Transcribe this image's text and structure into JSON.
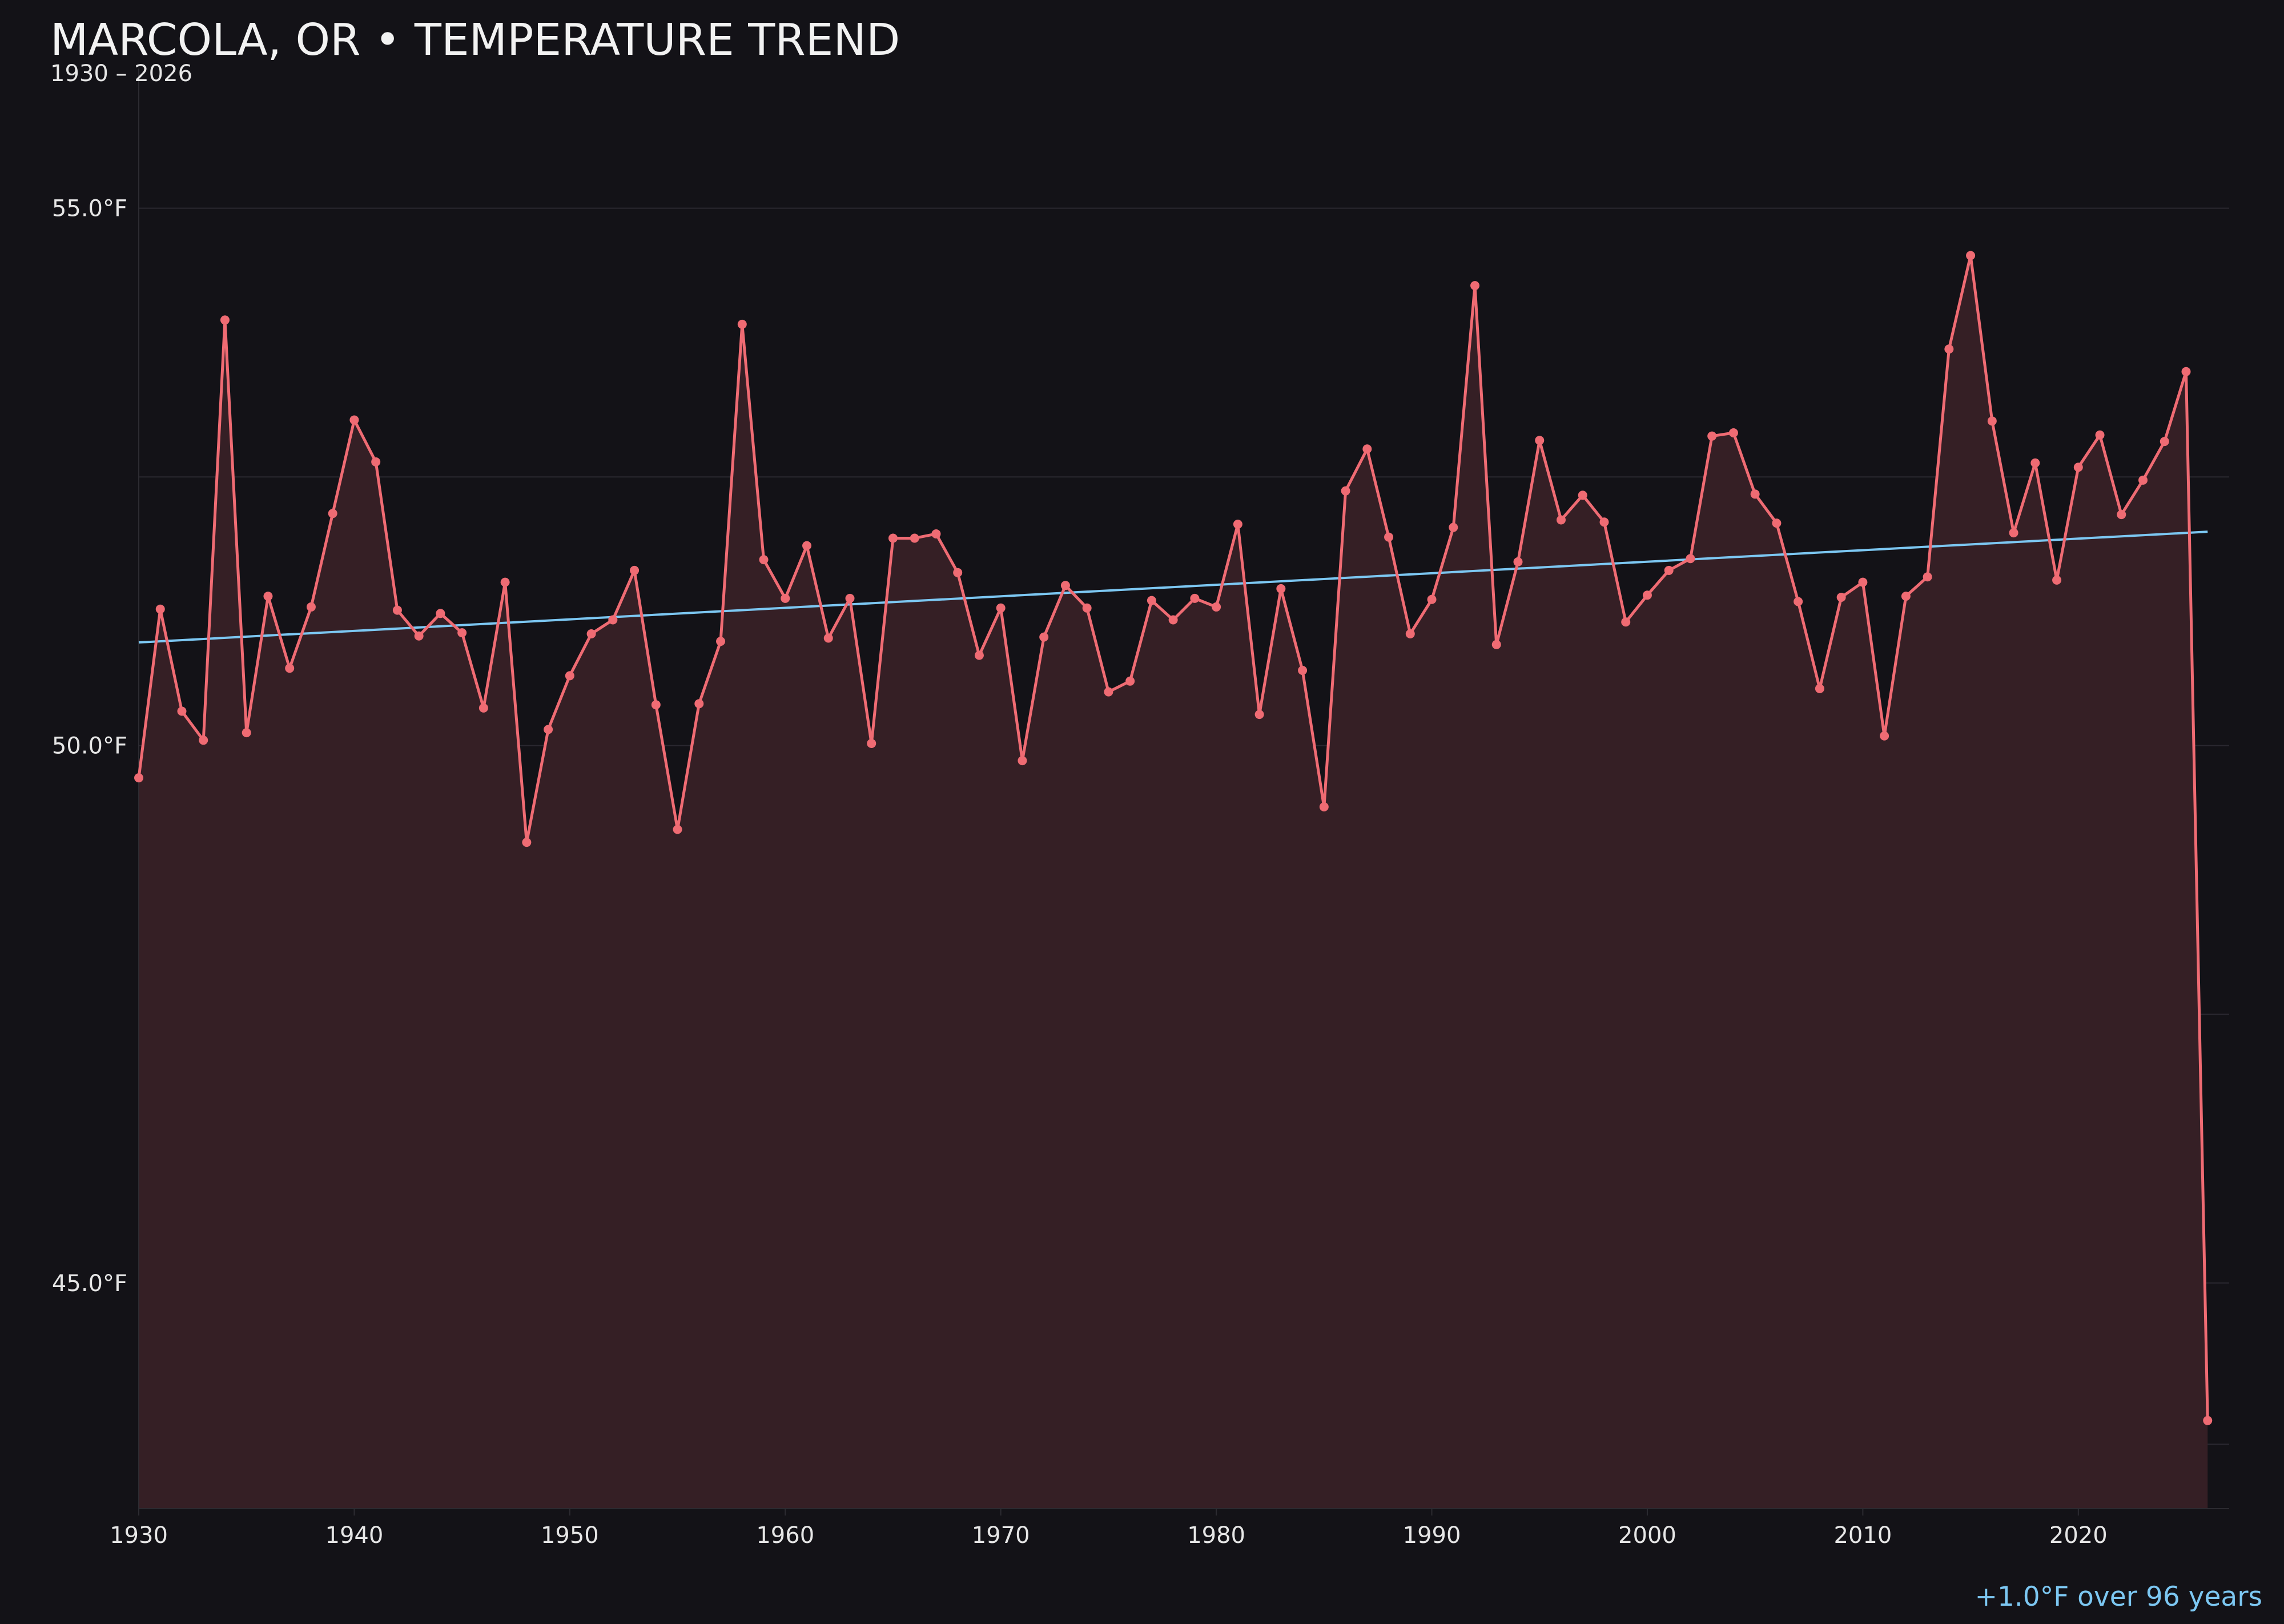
{
  "chart_data": {
    "type": "line",
    "title": "MARCOLA, OR • TEMPERATURE TREND",
    "subtitle": "1930 – 2026",
    "xlabel": "",
    "ylabel": "",
    "xlim": [
      1930,
      2027
    ],
    "ylim": [
      42.9,
      56.3
    ],
    "grid": true,
    "x_ticks": [
      {
        "value": 1930,
        "label": "1930"
      },
      {
        "value": 1940,
        "label": "1940"
      },
      {
        "value": 1950,
        "label": "1950"
      },
      {
        "value": 1960,
        "label": "1960"
      },
      {
        "value": 1970,
        "label": "1970"
      },
      {
        "value": 1980,
        "label": "1980"
      },
      {
        "value": 1990,
        "label": "1990"
      },
      {
        "value": 2000,
        "label": "2000"
      },
      {
        "value": 2010,
        "label": "2010"
      },
      {
        "value": 2020,
        "label": "2020"
      }
    ],
    "y_ticks": [
      {
        "value": 45,
        "label": "45.0°F"
      },
      {
        "value": 50,
        "label": "50.0°F"
      },
      {
        "value": 55,
        "label": "55.0°F"
      }
    ],
    "series": [
      {
        "color": "#ef6b73",
        "x": [
          1930,
          1931,
          1932,
          1933,
          1934,
          1935,
          1936,
          1937,
          1938,
          1939,
          1940,
          1941,
          1942,
          1943,
          1944,
          1945,
          1946,
          1947,
          1948,
          1949,
          1950,
          1951,
          1952,
          1953,
          1954,
          1955,
          1956,
          1957,
          1958,
          1959,
          1960,
          1961,
          1962,
          1963,
          1964,
          1965,
          1966,
          1967,
          1968,
          1969,
          1970,
          1971,
          1972,
          1973,
          1974,
          1975,
          1976,
          1977,
          1978,
          1979,
          1980,
          1981,
          1982,
          1983,
          1984,
          1985,
          1986,
          1987,
          1988,
          1989,
          1990,
          1991,
          1992,
          1993,
          1994,
          1995,
          1996,
          1997,
          1998,
          1999,
          2000,
          2001,
          2002,
          2003,
          2004,
          2005,
          2006,
          2007,
          2008,
          2009,
          2010,
          2011,
          2012,
          2013,
          2014,
          2015,
          2016,
          2017,
          2018,
          2019,
          2020,
          2021,
          2022,
          2023,
          2024,
          2025,
          2026
        ],
        "y": [
          49.7,
          51.27,
          50.32,
          50.05,
          53.96,
          50.12,
          51.39,
          50.72,
          51.29,
          52.16,
          53.03,
          52.64,
          51.26,
          51.02,
          51.23,
          51.05,
          50.35,
          51.52,
          49.1,
          50.15,
          50.65,
          51.04,
          51.17,
          51.63,
          50.38,
          49.22,
          50.39,
          50.97,
          53.92,
          51.73,
          51.37,
          51.86,
          51,
          51.37,
          50.02,
          51.93,
          51.93,
          51.97,
          51.61,
          50.84,
          51.28,
          49.86,
          51.01,
          51.49,
          51.28,
          50.5,
          50.6,
          51.35,
          51.17,
          51.37,
          51.29,
          52.06,
          50.29,
          51.46,
          50.7,
          49.43,
          52.37,
          52.76,
          51.94,
          51.04,
          51.36,
          52.03,
          54.28,
          50.94,
          51.71,
          52.84,
          52.1,
          52.33,
          52.08,
          51.15,
          51.4,
          51.63,
          51.74,
          52.88,
          52.91,
          52.34,
          52.07,
          51.34,
          50.53,
          51.38,
          51.52,
          50.09,
          51.39,
          51.57,
          53.69,
          54.56,
          53.02,
          51.98,
          52.63,
          51.54,
          52.59,
          52.89,
          52.15,
          52.47,
          52.83,
          53.48,
          43.72
        ]
      }
    ],
    "trend": {
      "color": "#7cc7f2",
      "start": {
        "x": 1930,
        "y": 50.96
      },
      "end": {
        "x": 2026,
        "y": 51.99
      }
    },
    "area_fill": "#351f25",
    "annotation": {
      "text": "+1.0°F over 96 years",
      "color": "#7cc7f2"
    }
  }
}
